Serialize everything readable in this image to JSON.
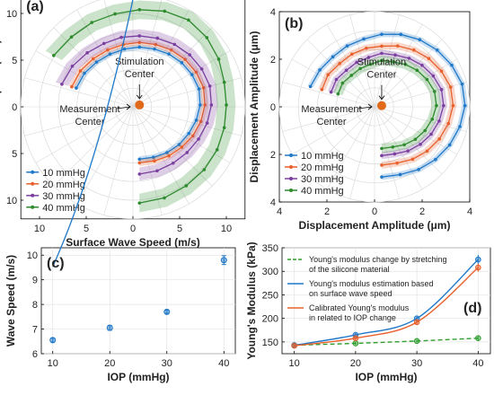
{
  "colors": {
    "blue": "#1f78c8",
    "orange": "#e8602c",
    "purple": "#7b3fa0",
    "green": "#2e8b2e",
    "center": "#e06a1a",
    "green_dashed": "#2f9e2f"
  },
  "chart_data": [
    {
      "id": "a",
      "type": "polar-line",
      "panel_label": "(a)",
      "xlabel": "Surface Wave Speed (m/s)",
      "ylabel": "Surface Wave Speed (m/s)",
      "ticks_x": [
        -10,
        -5,
        0,
        5,
        10
      ],
      "ticks_x_labels": [
        "10",
        "5",
        "0",
        "5",
        "10"
      ],
      "ticks_y": [
        10,
        5,
        0,
        -5,
        -10
      ],
      "ticks_y_labels": [
        "10",
        "5",
        "0",
        "5",
        "10"
      ],
      "lim": [
        -12,
        12
      ],
      "rings": [
        2,
        4,
        6,
        8,
        10,
        12
      ],
      "angles_deg": [
        -90,
        -75,
        -60,
        -45,
        -30,
        -15,
        0,
        15,
        30,
        45,
        60,
        75,
        90,
        105,
        120,
        135,
        150,
        165,
        180,
        195
      ],
      "legend": [
        "10 mmHg",
        "20 mmHg",
        "30 mmHg",
        "40 mmHg"
      ],
      "annotations": {
        "stimulation": "Stimulation\nCenter",
        "measurement": "Measurement\nCenter"
      },
      "stim_center": [
        0.7,
        0.2
      ],
      "series": [
        {
          "name": "10 mmHg",
          "color": "blue",
          "angles": [
            -90,
            -75,
            -60,
            -45,
            -30,
            -15,
            0,
            15,
            30,
            45,
            60,
            75,
            90,
            105,
            120,
            135,
            150,
            165
          ],
          "r": [
            5.8,
            5.8,
            5.9,
            6.0,
            6.1,
            6.3,
            6.5,
            6.6,
            6.5,
            6.4,
            6.3,
            6.2,
            6.2,
            6.2,
            6.3,
            6.5,
            6.8,
            7.0
          ],
          "band": 0.3
        },
        {
          "name": "20 mmHg",
          "color": "orange",
          "angles": [
            -90,
            -75,
            -60,
            -45,
            -30,
            -15,
            0,
            15,
            30,
            45,
            60,
            75,
            90,
            105,
            120,
            135,
            150,
            165
          ],
          "r": [
            6.2,
            6.2,
            6.3,
            6.4,
            6.6,
            6.8,
            7.0,
            7.1,
            7.0,
            6.9,
            6.8,
            6.7,
            6.7,
            6.7,
            6.8,
            7.0,
            7.3,
            7.5
          ],
          "band": 0.35
        },
        {
          "name": "30 mmHg",
          "color": "purple",
          "angles": [
            -90,
            -75,
            -60,
            -45,
            -30,
            -15,
            0,
            15,
            30,
            45,
            60,
            75,
            90,
            105,
            120,
            135,
            150,
            165
          ],
          "r": [
            7.4,
            7.3,
            7.2,
            7.2,
            7.3,
            7.5,
            7.7,
            7.8,
            7.7,
            7.6,
            7.5,
            7.4,
            7.4,
            7.5,
            7.6,
            7.9,
            8.3,
            8.6
          ],
          "band": 0.7
        },
        {
          "name": "40 mmHg",
          "color": "green",
          "angles": [
            -90,
            -75,
            -60,
            -45,
            -30,
            -15,
            0,
            15,
            30,
            45,
            60,
            75,
            90,
            105,
            120,
            135,
            150
          ],
          "r": [
            10.5,
            10.3,
            10.0,
            9.8,
            9.6,
            9.4,
            9.3,
            9.4,
            9.8,
            10.2,
            10.5,
            10.4,
            10.2,
            10.1,
            10.2,
            10.3,
            10.6
          ],
          "band": 1.0
        }
      ]
    },
    {
      "id": "b",
      "type": "polar-line",
      "panel_label": "(b)",
      "xlabel": "Displacement Amplitude (μm)",
      "ylabel": "Displacement Amplitude (μm)",
      "ticks_x": [
        -4,
        -2,
        0,
        2,
        4
      ],
      "ticks_x_labels": [
        "4",
        "2",
        "0",
        "2",
        "4"
      ],
      "ticks_y": [
        4,
        2,
        0,
        -2,
        -4
      ],
      "ticks_y_labels": [
        "4",
        "2",
        "0",
        "2",
        "4"
      ],
      "lim": [
        -4,
        4
      ],
      "rings": [
        0.8,
        1.6,
        2.4,
        3.2,
        4.0
      ],
      "angles_deg": [
        -90,
        -75,
        -60,
        -45,
        -30,
        -15,
        0,
        15,
        30,
        45,
        60,
        75,
        90,
        105,
        120,
        135,
        150,
        165,
        180,
        195
      ],
      "legend": [
        "10 mmHg",
        "20 mmHg",
        "30 mmHg",
        "40 mmHg"
      ],
      "annotations": {
        "stimulation": "Stimulation\nCenter",
        "measurement": "Measurement\nCenter"
      },
      "stim_center": [
        0.3,
        0.05
      ],
      "series": [
        {
          "name": "10 mmHg",
          "color": "blue",
          "angles": [
            -90,
            -75,
            -60,
            -45,
            -30,
            -15,
            0,
            15,
            30,
            45,
            60,
            75,
            90,
            105,
            120,
            135,
            150,
            165
          ],
          "r": [
            3.0,
            3.0,
            3.1,
            3.2,
            3.3,
            3.4,
            3.5,
            3.5,
            3.4,
            3.3,
            3.2,
            3.1,
            3.0,
            2.9,
            2.9,
            2.9,
            3.0,
            3.1
          ],
          "band": 0.12
        },
        {
          "name": "20 mmHg",
          "color": "orange",
          "angles": [
            -90,
            -75,
            -60,
            -45,
            -30,
            -15,
            0,
            15,
            30,
            45,
            60,
            75,
            90,
            105,
            120,
            135,
            150,
            165
          ],
          "r": [
            2.5,
            2.5,
            2.6,
            2.7,
            2.8,
            2.9,
            3.0,
            3.0,
            2.9,
            2.8,
            2.7,
            2.6,
            2.5,
            2.5,
            2.5,
            2.5,
            2.6,
            2.6
          ],
          "band": 0.15
        },
        {
          "name": "30 mmHg",
          "color": "purple",
          "angles": [
            -90,
            -75,
            -60,
            -45,
            -30,
            -15,
            0,
            15,
            30,
            45,
            60,
            75,
            90,
            105,
            120,
            135,
            150,
            165
          ],
          "r": [
            2.1,
            2.1,
            2.2,
            2.3,
            2.4,
            2.5,
            2.6,
            2.6,
            2.5,
            2.4,
            2.3,
            2.2,
            2.2,
            2.1,
            2.1,
            2.1,
            2.2,
            2.2
          ],
          "band": 0.15
        },
        {
          "name": "40 mmHg",
          "color": "green",
          "angles": [
            -90,
            -75,
            -60,
            -45,
            -30,
            -15,
            0,
            15,
            30,
            45,
            60,
            75,
            90,
            105,
            120,
            135,
            150,
            165
          ],
          "r": [
            1.8,
            1.8,
            1.9,
            2.0,
            2.1,
            2.2,
            2.3,
            2.3,
            2.2,
            2.1,
            2.0,
            1.9,
            1.9,
            1.8,
            1.8,
            1.8,
            1.9,
            1.9
          ],
          "band": 0.2
        }
      ]
    },
    {
      "id": "c",
      "type": "scatter",
      "panel_label": "(c)",
      "xlabel": "IOP (mmHg)",
      "ylabel": "Wave Speed (m/s)",
      "xlim": [
        8,
        42
      ],
      "ylim": [
        6,
        10.3
      ],
      "xticks": [
        10,
        20,
        30,
        40
      ],
      "yticks": [
        6,
        7,
        8,
        9,
        10
      ],
      "grid": true,
      "color": "blue",
      "x": [
        10,
        20,
        30,
        40
      ],
      "y": [
        6.55,
        7.05,
        7.7,
        9.8
      ],
      "yerr": [
        0.08,
        0.1,
        0.06,
        0.18
      ],
      "fit": {
        "type": "exponential",
        "a": 5.55,
        "b": 0.0541
      }
    },
    {
      "id": "d",
      "type": "line",
      "panel_label": "(d)",
      "xlabel": "IOP (mmHg)",
      "ylabel": "Young's Modulus (kPa)",
      "xlim": [
        8,
        42
      ],
      "ylim": [
        125,
        350
      ],
      "xticks": [
        10,
        20,
        30,
        40
      ],
      "yticks": [
        150,
        200,
        250,
        300,
        350
      ],
      "grid": true,
      "x": [
        10,
        20,
        30,
        40
      ],
      "series": [
        {
          "name": "Young's modulus change by stretching\nof the silicone material",
          "color": "green_dashed",
          "dashed": true,
          "y": [
            143,
            147,
            152,
            158
          ],
          "yerr": [
            2,
            3,
            3,
            4
          ]
        },
        {
          "name": "Young's modulus estimation based\non surface wave speed",
          "color": "blue",
          "dashed": false,
          "y": [
            143,
            165,
            200,
            325
          ],
          "yerr": [
            3,
            4,
            4,
            10
          ]
        },
        {
          "name": "Calibrated Young's modulus\nin related to IOP change",
          "color": "orange",
          "dashed": false,
          "y": [
            142,
            158,
            192,
            308
          ],
          "yerr": [
            3,
            4,
            4,
            9
          ]
        }
      ]
    }
  ]
}
